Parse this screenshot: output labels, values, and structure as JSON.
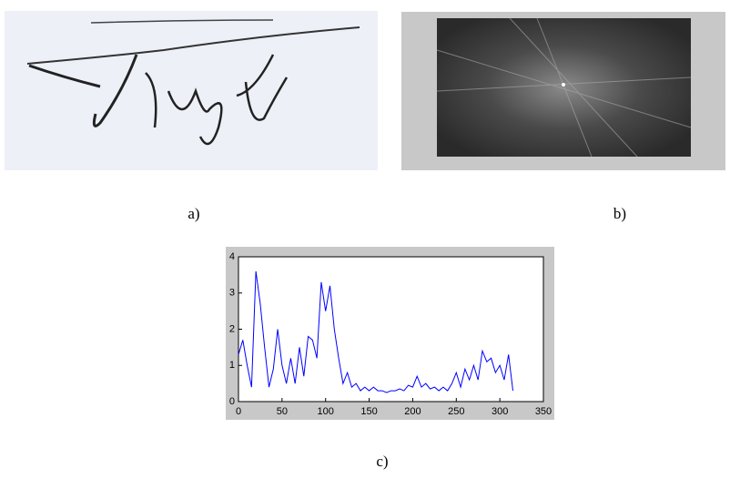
{
  "panels": [
    {
      "label": "a)"
    },
    {
      "label": "b)"
    },
    {
      "label": "c)"
    }
  ],
  "chart_data": {
    "type": "line",
    "x": [
      0,
      5,
      10,
      15,
      20,
      25,
      30,
      35,
      40,
      45,
      50,
      55,
      60,
      65,
      70,
      75,
      80,
      85,
      90,
      95,
      100,
      105,
      110,
      115,
      120,
      125,
      130,
      135,
      140,
      145,
      150,
      155,
      160,
      165,
      170,
      175,
      180,
      185,
      190,
      195,
      200,
      205,
      210,
      215,
      220,
      225,
      230,
      235,
      240,
      245,
      250,
      255,
      260,
      265,
      270,
      275,
      280,
      285,
      290,
      295,
      300,
      305,
      310,
      315
    ],
    "values": [
      1.3,
      1.7,
      1.0,
      0.4,
      3.6,
      2.7,
      1.5,
      0.4,
      0.9,
      2.0,
      1.0,
      0.5,
      1.2,
      0.5,
      1.5,
      0.7,
      1.8,
      1.7,
      1.2,
      3.3,
      2.5,
      3.2,
      2.0,
      1.2,
      0.5,
      0.8,
      0.4,
      0.5,
      0.3,
      0.4,
      0.3,
      0.4,
      0.3,
      0.3,
      0.25,
      0.3,
      0.3,
      0.35,
      0.3,
      0.45,
      0.4,
      0.7,
      0.4,
      0.5,
      0.35,
      0.4,
      0.3,
      0.4,
      0.3,
      0.5,
      0.8,
      0.4,
      0.9,
      0.6,
      1.0,
      0.6,
      1.4,
      1.1,
      1.2,
      0.8,
      1.0,
      0.6,
      1.3,
      0.3
    ],
    "color": "#0000ff",
    "xlim": [
      0,
      350
    ],
    "xticks": [
      0,
      50,
      100,
      150,
      200,
      250,
      300,
      350
    ],
    "ylim": [
      0,
      4
    ],
    "yticks": [
      0,
      1,
      2,
      3,
      4
    ]
  }
}
